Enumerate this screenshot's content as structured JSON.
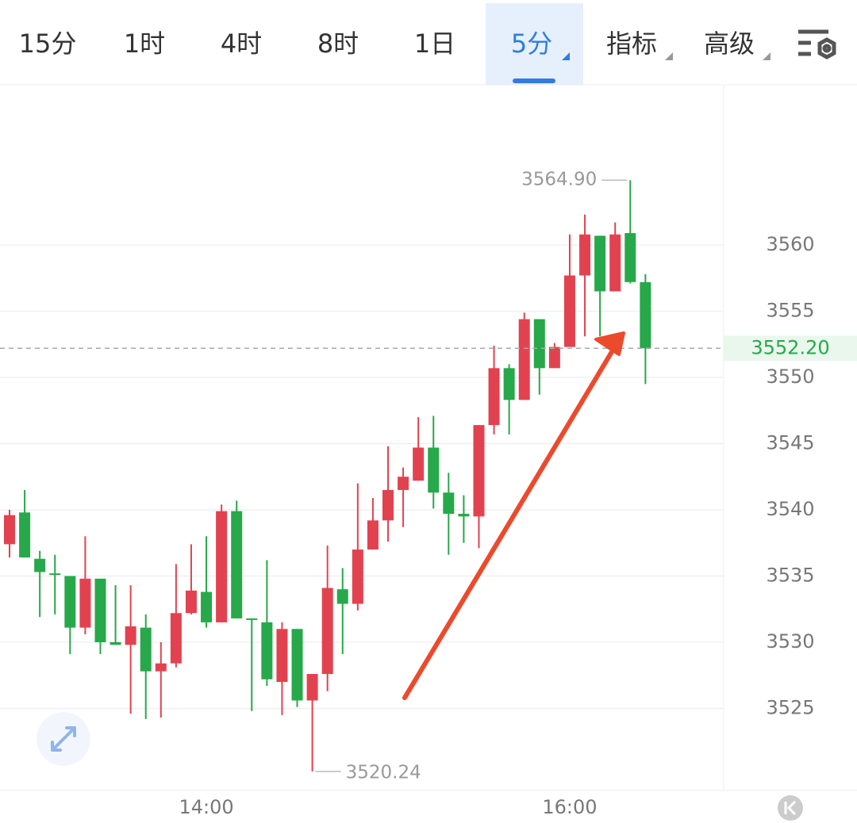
{
  "tabs": [
    "15分",
    "1时",
    "4时",
    "8时",
    "1日",
    "5分",
    "指标",
    "高级"
  ],
  "chart_data": {
    "type": "candlestick",
    "categories": [
      null,
      null,
      null,
      null,
      null,
      null,
      null,
      null,
      null,
      null,
      null,
      null,
      null,
      "14:00",
      null,
      null,
      null,
      null,
      null,
      null,
      null,
      null,
      null,
      null,
      null,
      null,
      null,
      null,
      null,
      null,
      null,
      null,
      null,
      null,
      null,
      null,
      null,
      "16:00",
      null,
      null,
      null,
      null,
      null
    ],
    "open": [
      3537.4,
      3539.8,
      3536.3,
      3535.2,
      3535.0,
      3531.1,
      3534.8,
      3530.0,
      3529.8,
      3531.1,
      3527.8,
      3528.4,
      3532.2,
      3533.8,
      3531.5,
      3539.9,
      3531.8,
      3531.5,
      3527.0,
      3531.0,
      3525.6,
      3527.6,
      3534.0,
      3532.9,
      3537.0,
      3539.2,
      3541.5,
      3542.2,
      3544.7,
      3541.3,
      3539.7,
      3539.5,
      3546.4,
      3550.7,
      3548.3,
      3554.4,
      3550.7,
      3552.3,
      3557.7,
      3560.7,
      3556.5,
      3560.9,
      3557.2
    ],
    "close": [
      3539.6,
      3536.4,
      3535.3,
      3535.1,
      3531.1,
      3534.8,
      3530.0,
      3529.8,
      3531.2,
      3527.8,
      3528.4,
      3532.2,
      3533.9,
      3531.5,
      3539.9,
      3531.8,
      3531.7,
      3527.2,
      3531.0,
      3525.6,
      3527.6,
      3534.1,
      3532.9,
      3537.0,
      3539.2,
      3541.5,
      3542.5,
      3544.7,
      3541.3,
      3539.7,
      3539.5,
      3546.4,
      3550.7,
      3548.3,
      3554.4,
      3550.7,
      3552.3,
      3557.7,
      3560.8,
      3556.5,
      3560.8,
      3557.2,
      3552.2
    ],
    "high": [
      3540.0,
      3541.5,
      3536.9,
      3536.6,
      3535.0,
      3538.0,
      3534.8,
      3534.3,
      3534.3,
      3532.1,
      3530.0,
      3535.9,
      3537.4,
      3538.0,
      3540.4,
      3540.7,
      3531.8,
      3536.2,
      3531.5,
      3531.0,
      3527.6,
      3537.3,
      3535.6,
      3542.0,
      3540.9,
      3544.8,
      3543.2,
      3547.0,
      3547.1,
      3542.8,
      3541.1,
      3546.4,
      3552.4,
      3551.0,
      3554.9,
      3554.4,
      3552.6,
      3560.8,
      3562.3,
      3560.7,
      3561.7,
      3564.9,
      3557.8
    ],
    "low": [
      3536.4,
      3536.4,
      3531.9,
      3532.1,
      3529.1,
      3530.6,
      3529.1,
      3529.8,
      3524.6,
      3524.2,
      3524.3,
      3528.1,
      3532.1,
      3531.1,
      3531.5,
      3531.8,
      3524.8,
      3526.7,
      3524.5,
      3525.1,
      3520.24,
      3526.3,
      3529.1,
      3532.4,
      3537.0,
      3537.6,
      3538.7,
      3542.2,
      3540.1,
      3536.6,
      3537.5,
      3537.1,
      3545.7,
      3545.7,
      3548.3,
      3548.7,
      3550.7,
      3552.3,
      3553.1,
      3553.1,
      3556.5,
      3557.1,
      3549.5
    ],
    "up_color": "#e2424f",
    "down_color": "#27a84a",
    "ylim": [
      3518.8,
      3572.1
    ],
    "yticks": [
      3525,
      3530,
      3535,
      3540,
      3545,
      3550,
      3555,
      3560
    ],
    "grid": true,
    "high_label": "3564.90",
    "low_label": "3520.24",
    "last_price": {
      "value": 3552.2,
      "label": "3552.20"
    }
  }
}
